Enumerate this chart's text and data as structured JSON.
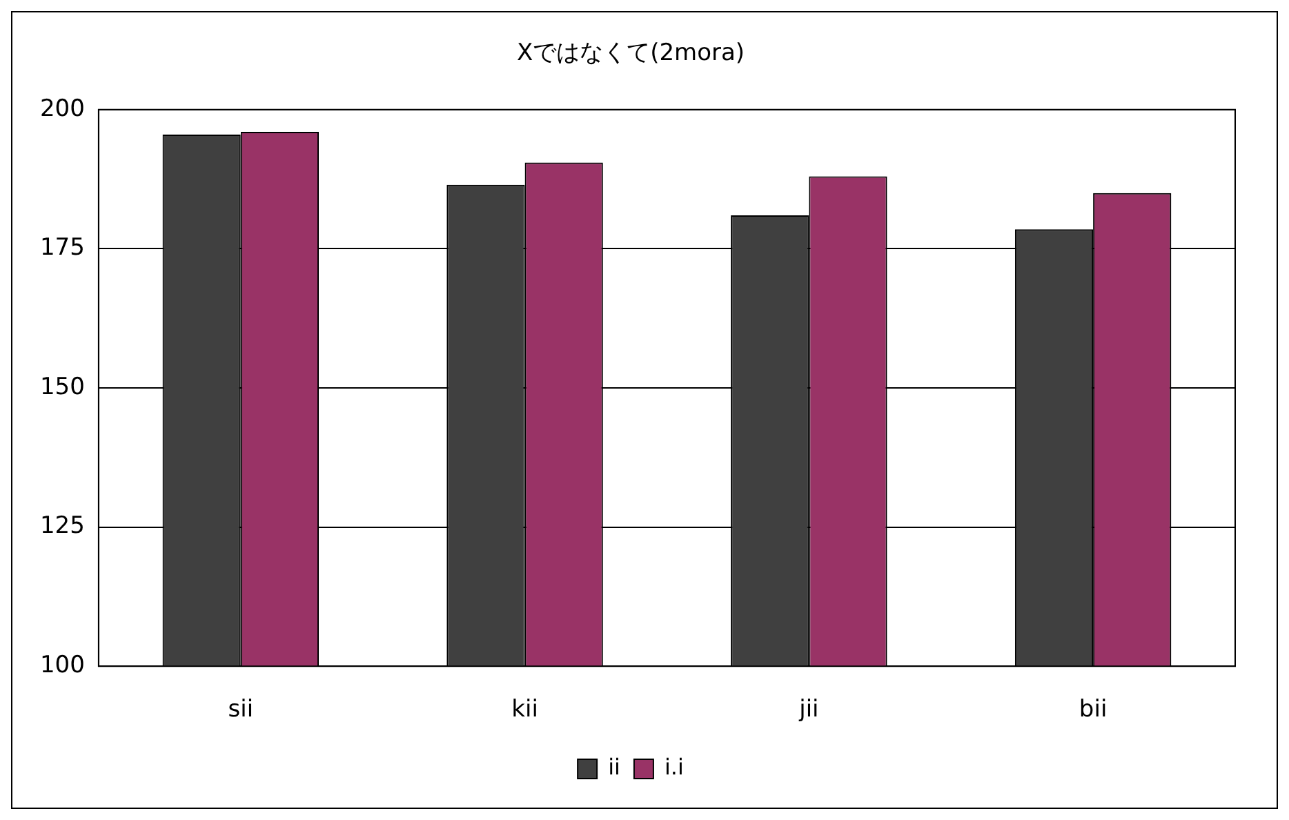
{
  "chart_data": {
    "type": "bar",
    "title": "Xではなくて(2mora)",
    "categories": [
      "sii",
      "kii",
      "jii",
      "bii"
    ],
    "series": [
      {
        "name": "ii",
        "color": "#404040",
        "values": [
          195.5,
          186.5,
          181,
          178.5
        ]
      },
      {
        "name": "i.i",
        "color": "#993366",
        "values": [
          196,
          190.5,
          188,
          185
        ]
      }
    ],
    "ylim": [
      100,
      200
    ],
    "yticks": [
      100,
      125,
      150,
      175,
      200
    ],
    "grid": "y",
    "legend": "bottom"
  }
}
